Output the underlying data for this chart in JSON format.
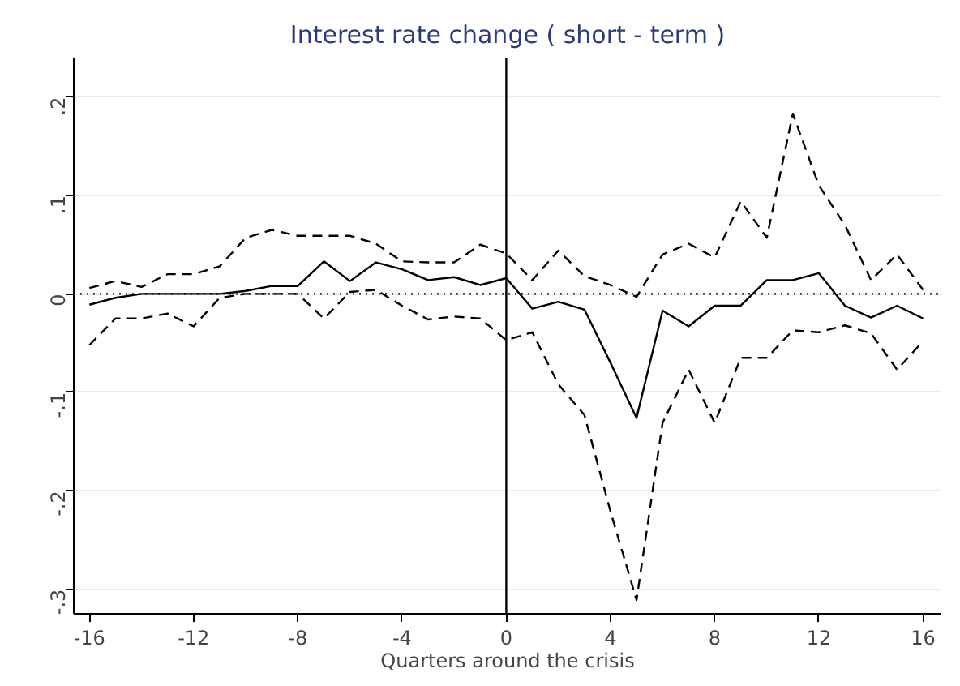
{
  "chart_data": {
    "type": "line",
    "title": "Interest rate change ( short - term )",
    "xlabel": "Quarters around the crisis",
    "x": [
      -16,
      -15,
      -14,
      -13,
      -12,
      -11,
      -10,
      -9,
      -8,
      -7,
      -6,
      -5,
      -4,
      -3,
      -2,
      -1,
      0,
      1,
      2,
      3,
      4,
      5,
      6,
      7,
      8,
      9,
      10,
      11,
      12,
      13,
      14,
      15,
      16
    ],
    "series": [
      {
        "color": "#000000",
        "line_style": "solid",
        "values": [
          -0.011,
          -0.004,
          0,
          0,
          0,
          0,
          0.003,
          0.008,
          0.008,
          0.033,
          0.013,
          0.032,
          0.025,
          0.014,
          0.017,
          0.009,
          0.016,
          -0.015,
          -0.008,
          -0.016,
          -0.07,
          -0.126,
          -0.017,
          -0.033,
          -0.012,
          -0.012,
          0.014,
          0.014,
          0.021,
          -0.012,
          -0.024,
          -0.012,
          -0.025
        ]
      },
      {
        "color": "#000000",
        "line_style": "dashed",
        "values": [
          0.006,
          0.013,
          0.007,
          0.02,
          0.02,
          0.028,
          0.057,
          0.065,
          0.059,
          0.059,
          0.059,
          0.051,
          0.033,
          0.032,
          0.032,
          0.05,
          0.041,
          0.014,
          0.044,
          0.018,
          0.009,
          -0.003,
          0.04,
          0.051,
          0.037,
          0.094,
          0.057,
          0.183,
          0.11,
          0.07,
          0.014,
          0.04,
          0.004
        ]
      },
      {
        "color": "#000000",
        "line_style": "dashed",
        "values": [
          -0.052,
          -0.025,
          -0.025,
          -0.02,
          -0.033,
          -0.004,
          0,
          0,
          0,
          -0.025,
          0.002,
          0.004,
          -0.012,
          -0.026,
          -0.023,
          -0.025,
          -0.047,
          -0.039,
          -0.092,
          -0.123,
          -0.221,
          -0.311,
          -0.131,
          -0.077,
          -0.131,
          -0.065,
          -0.065,
          -0.037,
          -0.039,
          -0.032,
          -0.04,
          -0.077,
          -0.048
        ]
      }
    ],
    "xlim": [
      -16.6,
      16.7
    ],
    "ylim": [
      -0.325,
      0.24
    ],
    "xticks": [
      -16,
      -12,
      -8,
      -4,
      0,
      4,
      8,
      12,
      16
    ],
    "yticks": [
      {
        "value": 0.2,
        "label": ".2"
      },
      {
        "value": 0.1,
        "label": ".1"
      },
      0,
      {
        "value": -0.1,
        "label": "-.1"
      },
      {
        "value": -0.2,
        "label": "-.2"
      },
      {
        "value": -0.3,
        "label": "-.3"
      }
    ],
    "ref_lines": [
      {
        "axis": "x",
        "value": 0,
        "color": "#000000",
        "line_style": "solid"
      },
      {
        "axis": "y",
        "value": 0,
        "color": "#000000",
        "line_style": "dotted"
      }
    ],
    "grid": "y",
    "marker": "none"
  }
}
